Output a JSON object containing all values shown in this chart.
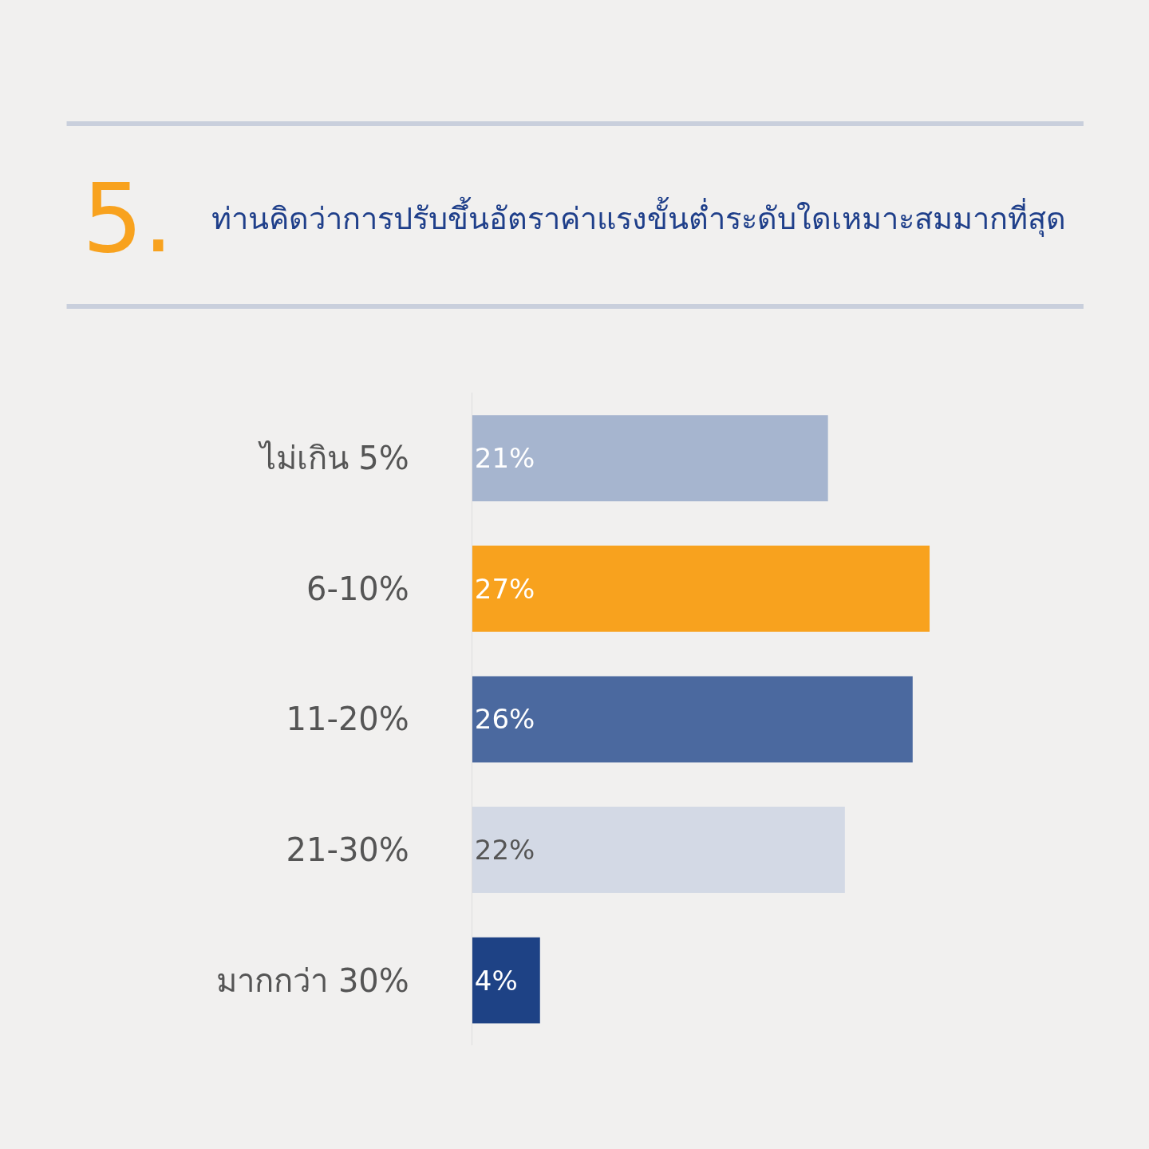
{
  "chart_data": {
    "type": "bar",
    "orientation": "horizontal",
    "title": "ท่านคิดว่าการปรับขึ้นอัตราค่าแรงขั้นต่ำระดับใดเหมาะสมมากที่สุด",
    "annotations": [
      "5."
    ],
    "categories": [
      "ไม่เกิน 5%",
      "6-10%",
      "11-20%",
      "21-30%",
      "มากกว่า 30%"
    ],
    "values": [
      21,
      27,
      26,
      22,
      4
    ],
    "colors": [
      "#a6b5cf",
      "#f8a21e",
      "#4b699f",
      "#d3d9e5",
      "#1e4285"
    ],
    "value_labels": [
      "21%",
      "27%",
      "26%",
      "22%",
      "4%"
    ],
    "tick_labels": "y",
    "legend": false
  }
}
